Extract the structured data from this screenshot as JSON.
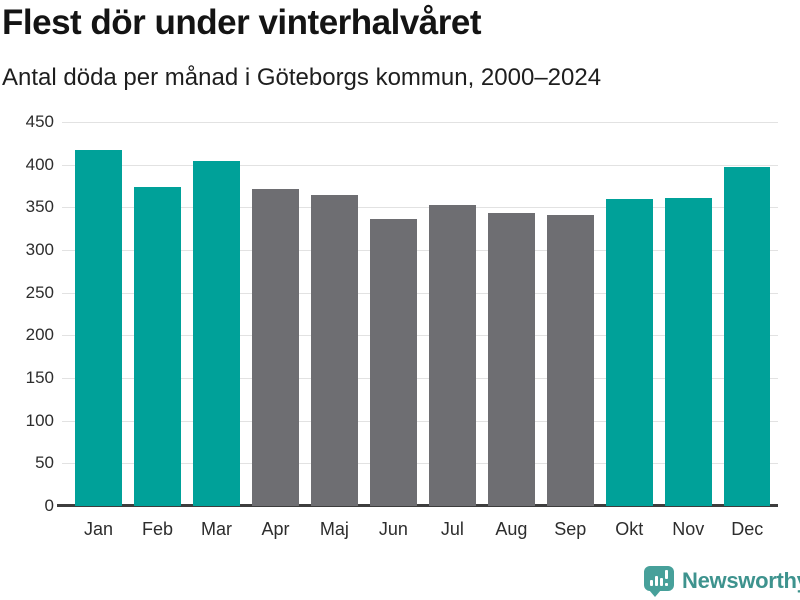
{
  "header": {
    "title": "Flest dör under vinterhalvåret",
    "subtitle": "Antal döda per månad i Göteborgs kommun, 2000–2024"
  },
  "chart_data": {
    "type": "bar",
    "title": "Flest dör under vinterhalvåret",
    "subtitle": "Antal döda per månad i Göteborgs kommun, 2000–2024",
    "categories": [
      "Jan",
      "Feb",
      "Mar",
      "Apr",
      "Maj",
      "Jun",
      "Jul",
      "Aug",
      "Sep",
      "Okt",
      "Nov",
      "Dec"
    ],
    "values": [
      417,
      374,
      404,
      372,
      365,
      336,
      353,
      343,
      341,
      360,
      361,
      397
    ],
    "bar_colors": [
      "#00a199",
      "#00a199",
      "#00a199",
      "#6e6e72",
      "#6e6e72",
      "#6e6e72",
      "#6e6e72",
      "#6e6e72",
      "#6e6e72",
      "#00a199",
      "#00a199",
      "#00a199"
    ],
    "highlight_color": "#00a199",
    "base_color": "#6e6e72",
    "xlabel": "",
    "ylabel": "",
    "ylim": [
      0,
      450
    ],
    "yticks": [
      0,
      50,
      100,
      150,
      200,
      250,
      300,
      350,
      400,
      450
    ],
    "grid": true,
    "legend": "none",
    "gridline_color": "#e2e2e2",
    "axis_line_color": "#3d3d3d"
  },
  "footer": {
    "brand": "Newsworthy",
    "brand_color": "#3e938e",
    "icon": "newsworthy-logo-icon",
    "icon_color": "#47a09a"
  }
}
